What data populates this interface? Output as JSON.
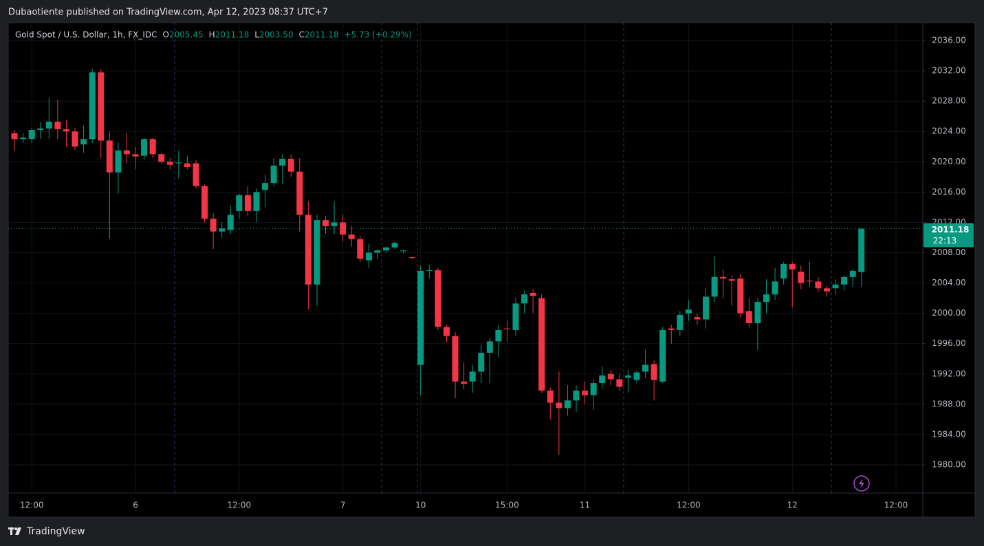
{
  "header": {
    "published": "Dubaotiente published on TradingView.com, Apr 12, 2023 08:37 UTC+7"
  },
  "chart_data": {
    "type": "candlestick",
    "title": "Gold Spot / U.S. Dollar, 1h, FX_IDC",
    "ohlc_legend": [
      {
        "key": "O",
        "value": "2005.45"
      },
      {
        "key": "H",
        "value": "2011.18"
      },
      {
        "key": "L",
        "value": "2003.50"
      },
      {
        "key": "C",
        "value": "2011.18"
      }
    ],
    "change": "+5.73 (+0.29%)",
    "up_color": "#089981",
    "down_color": "#f23645",
    "candles": [
      [
        2023.8,
        2024.2,
        2021.5,
        2023.0
      ],
      [
        2023.0,
        2023.8,
        2022.5,
        2023.2
      ],
      [
        2023.0,
        2024.5,
        2022.5,
        2024.2
      ],
      [
        2024.2,
        2025.2,
        2023.0,
        2024.4
      ],
      [
        2024.4,
        2028.5,
        2023.0,
        2025.3
      ],
      [
        2025.3,
        2028.2,
        2023.0,
        2024.3
      ],
      [
        2024.3,
        2025.5,
        2022.0,
        2024.0
      ],
      [
        2024.0,
        2024.5,
        2021.5,
        2022.0
      ],
      [
        2022.3,
        2024.8,
        2021.2,
        2023.0
      ],
      [
        2023.0,
        2032.3,
        2022.5,
        2031.8
      ],
      [
        2031.8,
        2032.2,
        2020.5,
        2022.8
      ],
      [
        2022.8,
        2024.0,
        2009.8,
        2018.6
      ],
      [
        2018.6,
        2022.5,
        2015.8,
        2021.5
      ],
      [
        2021.5,
        2023.8,
        2019.8,
        2021.0
      ],
      [
        2021.0,
        2022.0,
        2019.0,
        2020.7
      ],
      [
        2020.8,
        2023.2,
        2020.3,
        2023.0
      ],
      [
        2023.0,
        2023.2,
        2020.5,
        2021.0
      ],
      [
        2021.0,
        2021.2,
        2019.8,
        2020.0
      ],
      [
        2020.0,
        2020.5,
        2019.0,
        2019.6
      ],
      [
        2019.8,
        2021.5,
        2017.8,
        2019.9
      ],
      [
        2019.8,
        2020.8,
        2019.0,
        2019.3
      ],
      [
        2019.8,
        2020.2,
        2016.5,
        2016.8
      ],
      [
        2016.8,
        2017.0,
        2012.0,
        2012.5
      ],
      [
        2012.5,
        2013.2,
        2008.5,
        2010.8
      ],
      [
        2010.8,
        2012.0,
        2010.0,
        2011.2
      ],
      [
        2011.0,
        2014.2,
        2010.5,
        2013.0
      ],
      [
        2013.5,
        2015.8,
        2012.5,
        2015.6
      ],
      [
        2015.6,
        2016.8,
        2012.8,
        2013.5
      ],
      [
        2013.5,
        2016.5,
        2012.0,
        2016.0
      ],
      [
        2016.3,
        2018.3,
        2014.0,
        2017.2
      ],
      [
        2017.2,
        2020.5,
        2016.8,
        2019.5
      ],
      [
        2019.5,
        2021.0,
        2017.0,
        2020.4
      ],
      [
        2020.4,
        2021.0,
        2018.0,
        2018.7
      ],
      [
        2018.7,
        2020.5,
        2010.8,
        2013.0
      ],
      [
        2013.0,
        2014.8,
        2000.5,
        2003.8
      ],
      [
        2003.8,
        2013.0,
        2001.0,
        2012.3
      ],
      [
        2012.3,
        2012.8,
        2010.5,
        2011.5
      ],
      [
        2011.5,
        2014.8,
        2010.5,
        2012.0
      ],
      [
        2012.0,
        2013.0,
        2009.5,
        2010.4
      ],
      [
        2010.4,
        2011.5,
        2008.8,
        2009.8
      ],
      [
        2009.8,
        2010.2,
        2006.8,
        2007.2
      ],
      [
        2007.0,
        2009.2,
        2006.0,
        2008.0
      ],
      [
        2008.0,
        2008.5,
        2007.2,
        2008.3
      ],
      [
        2008.3,
        2008.8,
        2008.0,
        2008.7
      ],
      [
        2008.7,
        2009.5,
        2008.5,
        2009.3
      ],
      [
        2008.2,
        2008.4,
        2007.9,
        2008.3
      ],
      [
        2007.4,
        2007.5,
        2007.2,
        2007.3
      ],
      [
        1993.2,
        2006.3,
        1989.2,
        2005.6
      ],
      [
        2005.6,
        2006.3,
        2004.6,
        2005.7
      ],
      [
        2005.7,
        2006.0,
        1997.8,
        1998.2
      ],
      [
        1998.2,
        1998.5,
        1996.2,
        1997.0
      ],
      [
        1997.0,
        1997.5,
        1988.8,
        1991.0
      ],
      [
        1991.0,
        1993.5,
        1990.0,
        1990.7
      ],
      [
        1991.0,
        1993.2,
        1989.5,
        1992.3
      ],
      [
        1992.3,
        1995.8,
        1990.8,
        1994.8
      ],
      [
        1994.8,
        1996.8,
        1990.8,
        1996.3
      ],
      [
        1996.3,
        1998.5,
        1994.2,
        1997.8
      ],
      [
        1998.0,
        1999.0,
        1996.2,
        1997.9
      ],
      [
        1997.8,
        2002.0,
        1997.0,
        2001.3
      ],
      [
        2001.3,
        2003.0,
        2000.0,
        2002.5
      ],
      [
        2002.7,
        2003.2,
        2000.0,
        2002.3
      ],
      [
        2002.0,
        2002.5,
        1989.5,
        1989.8
      ],
      [
        1989.8,
        1990.2,
        1986.0,
        1988.2
      ],
      [
        1988.2,
        1992.3,
        1981.3,
        1987.5
      ],
      [
        1987.5,
        1990.5,
        1986.5,
        1988.5
      ],
      [
        1988.5,
        1990.5,
        1987.0,
        1989.8
      ],
      [
        1989.8,
        1991.0,
        1988.0,
        1989.2
      ],
      [
        1989.2,
        1991.3,
        1987.3,
        1990.8
      ],
      [
        1990.8,
        1993.0,
        1990.0,
        1991.8
      ],
      [
        1992.0,
        1992.5,
        1990.5,
        1991.3
      ],
      [
        1991.3,
        1992.0,
        1989.8,
        1990.3
      ],
      [
        1991.5,
        1992.5,
        1989.5,
        1991.8
      ],
      [
        1991.2,
        1992.5,
        1990.8,
        1992.2
      ],
      [
        1992.3,
        1995.2,
        1991.5,
        1993.2
      ],
      [
        1993.3,
        1993.8,
        1988.5,
        1991.2
      ],
      [
        1991.0,
        1998.2,
        1990.8,
        1997.8
      ],
      [
        1998.0,
        1998.5,
        1996.0,
        1997.8
      ],
      [
        1997.8,
        2000.3,
        1997.0,
        1999.8
      ],
      [
        2000.0,
        2001.8,
        1999.0,
        2000.5
      ],
      [
        1999.5,
        2000.0,
        1998.5,
        1999.2
      ],
      [
        1999.2,
        2003.3,
        1998.0,
        2002.2
      ],
      [
        2002.2,
        2007.5,
        2001.5,
        2004.8
      ],
      [
        2004.8,
        2005.8,
        2002.0,
        2004.6
      ],
      [
        2004.5,
        2005.0,
        2001.0,
        2004.3
      ],
      [
        2004.6,
        2005.2,
        1999.5,
        2000.0
      ],
      [
        2000.3,
        2002.0,
        1998.2,
        1998.7
      ],
      [
        1998.7,
        2002.0,
        1995.2,
        2001.5
      ],
      [
        2001.5,
        2004.5,
        2000.0,
        2002.5
      ],
      [
        2002.5,
        2006.0,
        2001.8,
        2004.2
      ],
      [
        2004.6,
        2006.8,
        2003.8,
        2006.5
      ],
      [
        2006.5,
        2006.8,
        2000.8,
        2005.8
      ],
      [
        2005.5,
        2006.3,
        2003.2,
        2004.0
      ],
      [
        2004.3,
        2006.8,
        2003.5,
        2004.2
      ],
      [
        2004.2,
        2004.8,
        2002.8,
        2003.3
      ],
      [
        2003.3,
        2003.7,
        2002.2,
        2002.9
      ],
      [
        2003.3,
        2004.5,
        2002.5,
        2003.8
      ],
      [
        2003.8,
        2005.0,
        2003.0,
        2004.8
      ],
      [
        2004.8,
        2005.8,
        2003.5,
        2005.6
      ],
      [
        2005.45,
        2011.18,
        2003.5,
        2011.18
      ]
    ],
    "ylim": [
      1976.28,
      2038.36
    ],
    "yticks": [
      {
        "value": 1980,
        "label": "1980.00"
      },
      {
        "value": 1984,
        "label": "1984.00"
      },
      {
        "value": 1988,
        "label": "1988.00"
      },
      {
        "value": 1992,
        "label": "1992.00"
      },
      {
        "value": 1996,
        "label": "1996.00"
      },
      {
        "value": 2000,
        "label": "2000.00"
      },
      {
        "value": 2004,
        "label": "2004.00"
      },
      {
        "value": 2008,
        "label": "2008.00"
      },
      {
        "value": 2012,
        "label": "2012.00"
      },
      {
        "value": 2016,
        "label": "2016.00"
      },
      {
        "value": 2020,
        "label": "2020.00"
      },
      {
        "value": 2024,
        "label": "2024.00"
      },
      {
        "value": 2028,
        "label": "2028.00"
      },
      {
        "value": 2032,
        "label": "2032.00"
      },
      {
        "value": 2036,
        "label": "2036.00"
      }
    ],
    "xlim": [
      -0.72,
      105.1
    ],
    "xticks": [
      {
        "value": 2,
        "label": "12:00"
      },
      {
        "value": 14,
        "label": "6"
      },
      {
        "value": 26,
        "label": "12:00"
      },
      {
        "value": 38,
        "label": "7"
      },
      {
        "value": 47,
        "label": "10"
      },
      {
        "value": 57,
        "label": "15:00"
      },
      {
        "value": 66,
        "label": "11"
      },
      {
        "value": 78,
        "label": "12:00"
      },
      {
        "value": 90,
        "label": "12"
      },
      {
        "value": 102,
        "label": "12:00"
      }
    ],
    "grid": true,
    "last_price_label": "2011.18",
    "countdown": "22:13"
  },
  "footer": {
    "brand": "TradingView"
  }
}
